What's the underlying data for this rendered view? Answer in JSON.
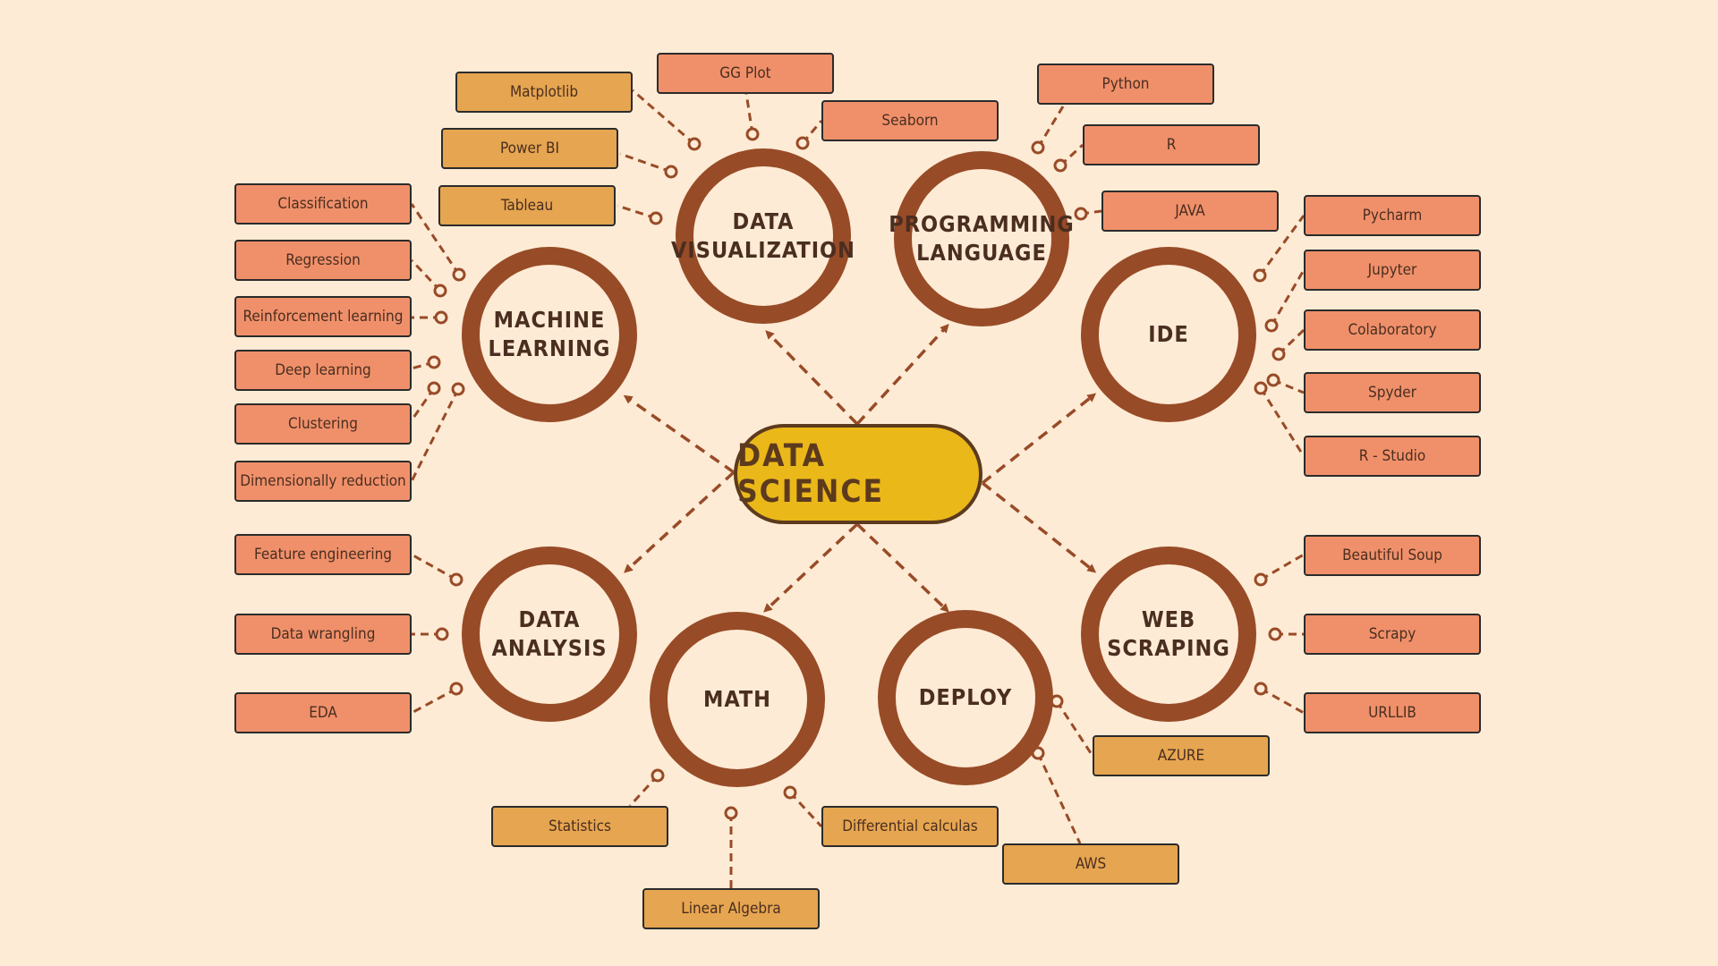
{
  "center": {
    "label": "DATA SCIENCE"
  },
  "colors": {
    "background": "#FEEBD5",
    "ring": "#984B27",
    "center_fill": "#EBB819",
    "leaf_salmon": "#F0906A",
    "leaf_gold": "#E6A550",
    "connector": "#984B27"
  },
  "hubs": [
    {
      "id": "machine-learning",
      "lines": [
        "MACHINE",
        "LEARNING"
      ],
      "leaves": [
        "Classification",
        "Regression",
        "Reinforcement learning",
        "Deep learning",
        "Clustering",
        "Dimensionally reduction"
      ],
      "leaf_color": "salmon"
    },
    {
      "id": "data-visualization",
      "lines": [
        "DATA",
        "VISUALIZATION"
      ],
      "leaves": [
        "Matplotlib",
        "GG Plot",
        "Seaborn",
        "Power BI",
        "Tableau"
      ],
      "leaf_color": "mixed"
    },
    {
      "id": "programming-language",
      "lines": [
        "PROGRAMMING",
        "LANGUAGE"
      ],
      "leaves": [
        "Python",
        "R",
        "JAVA"
      ],
      "leaf_color": "salmon"
    },
    {
      "id": "ide",
      "lines": [
        "IDE"
      ],
      "leaves": [
        "Pycharm",
        "Jupyter",
        "Colaboratory",
        "Spyder",
        "R - Studio"
      ],
      "leaf_color": "salmon"
    },
    {
      "id": "data-analysis",
      "lines": [
        "DATA",
        "ANALYSIS"
      ],
      "leaves": [
        "Feature engineering",
        "Data wrangling",
        "EDA"
      ],
      "leaf_color": "salmon"
    },
    {
      "id": "math",
      "lines": [
        "MATH"
      ],
      "leaves": [
        "Statistics",
        "Linear Algebra",
        "Differential calculas"
      ],
      "leaf_color": "gold"
    },
    {
      "id": "deploy",
      "lines": [
        "DEPLOY"
      ],
      "leaves": [
        "AZURE",
        "AWS"
      ],
      "leaf_color": "gold"
    },
    {
      "id": "web-scraping",
      "lines": [
        "WEB",
        "SCRAPING"
      ],
      "leaves": [
        "Beautiful Soup",
        "Scrapy",
        "URLLIB"
      ],
      "leaf_color": "salmon"
    }
  ]
}
